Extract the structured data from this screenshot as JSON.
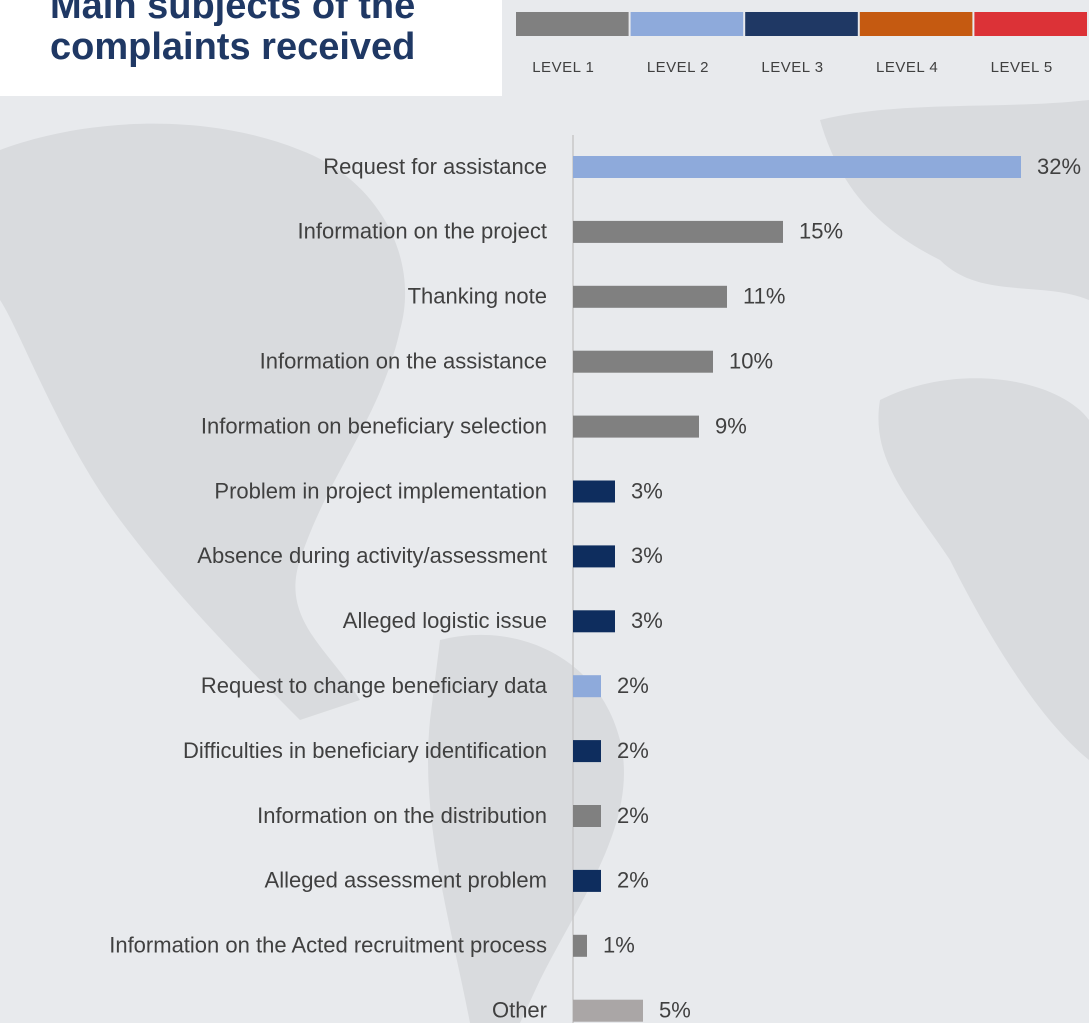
{
  "chart_data": {
    "type": "bar",
    "orientation": "horizontal",
    "title": "Main subjects of the complaints received",
    "legend": [
      {
        "name": "LEVEL 1",
        "color": "#808080"
      },
      {
        "name": "LEVEL 2",
        "color": "#8eaadb"
      },
      {
        "name": "LEVEL 3",
        "color": "#1f3864"
      },
      {
        "name": "LEVEL 4",
        "color": "#c55a11"
      },
      {
        "name": "LEVEL 5",
        "color": "#dc3237"
      }
    ],
    "categories": [
      "Request for assistance",
      "Information on the project",
      "Thanking note",
      "Information on the assistance",
      "Information on beneficiary selection",
      "Problem in project implementation",
      "Absence during activity/assessment",
      "Alleged logistic issue",
      "Request to change beneficiary data",
      "Difficulties in beneficiary identification",
      "Information on the distribution",
      "Alleged assessment problem",
      "Information on the Acted recruitment process",
      "Other"
    ],
    "values": [
      32,
      15,
      11,
      10,
      9,
      3,
      3,
      3,
      2,
      2,
      2,
      2,
      1,
      5
    ],
    "value_labels": [
      "32%",
      "15%",
      "11%",
      "10%",
      "9%",
      "3%",
      "3%",
      "3%",
      "2%",
      "2%",
      "2%",
      "2%",
      "1%",
      "5%"
    ],
    "colors": [
      "#8eaadb",
      "#808080",
      "#808080",
      "#808080",
      "#808080",
      "#0e2d5e",
      "#0e2d5e",
      "#0e2d5e",
      "#8eaadb",
      "#0e2d5e",
      "#808080",
      "#0e2d5e",
      "#808080",
      "#aaa6a6"
    ],
    "xlim": [
      0,
      32
    ]
  }
}
